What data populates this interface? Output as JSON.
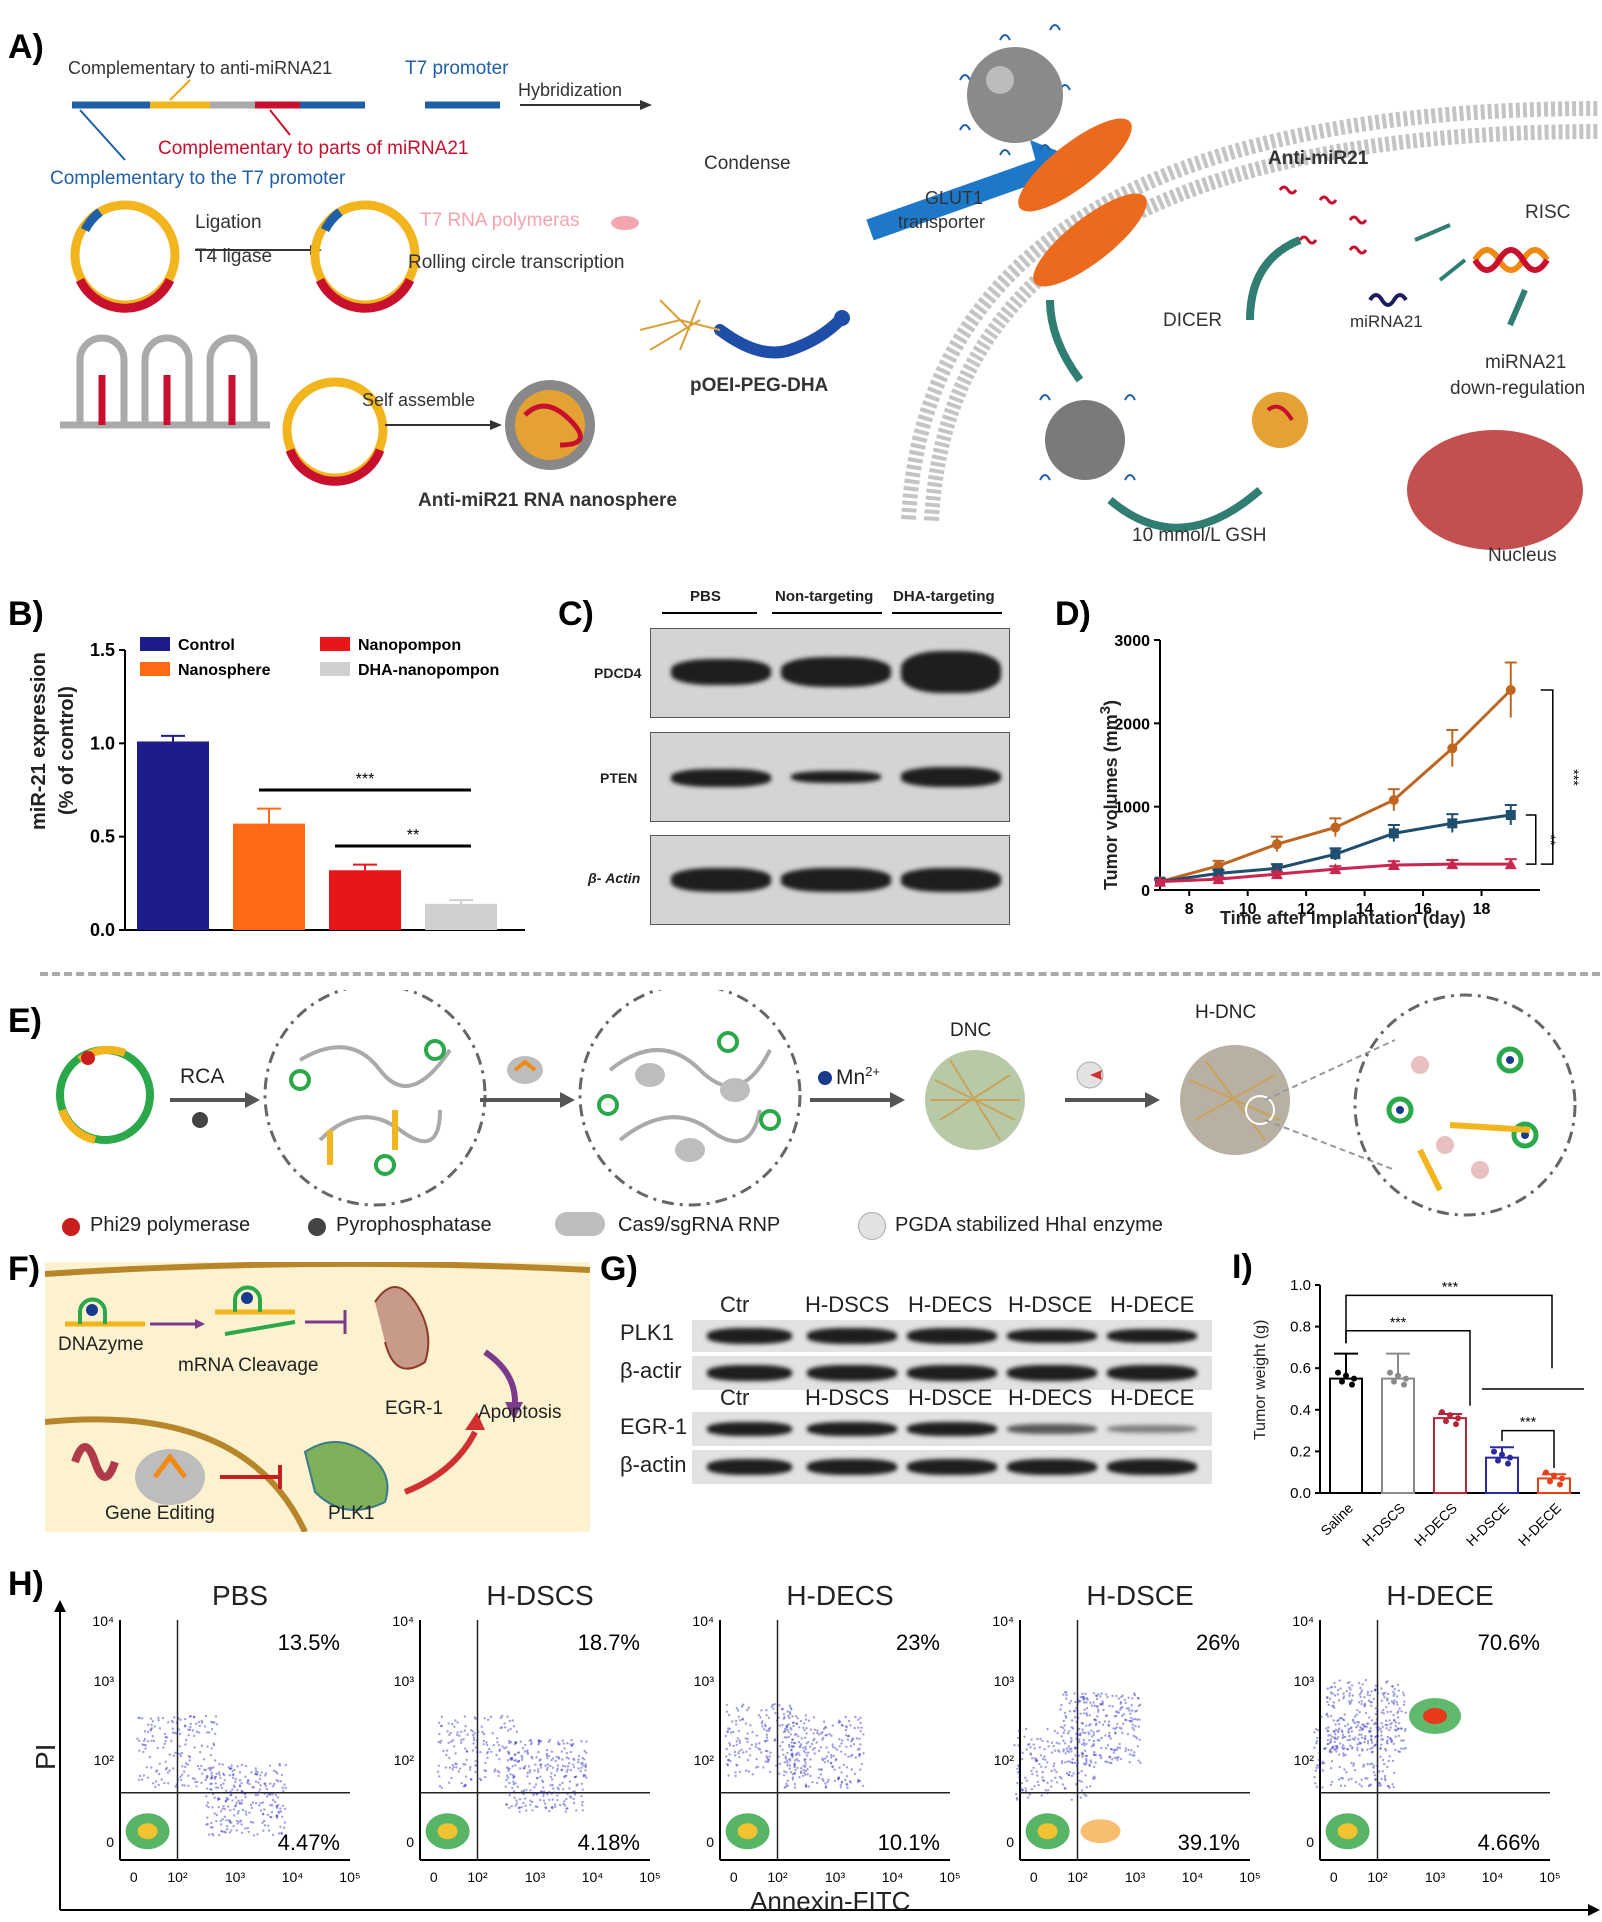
{
  "panels": {
    "A": "A)",
    "B": "B)",
    "C": "C)",
    "D": "D)",
    "E": "E)",
    "F": "F)",
    "G": "G)",
    "H": "H)",
    "I": "I)"
  },
  "panelA": {
    "complementary_anti": "Complementary to anti-miRNA21",
    "t7_promoter": "T7 promoter",
    "hybridization": "Hybridization",
    "complementary_parts": "Complementary to parts of miRNA21",
    "complementary_t7": "Complementary to the T7 promoter",
    "ligation": "Ligation",
    "t4_ligase": "T4 ligase",
    "t7_rna_pol": "T7 RNA polymeras",
    "rolling": "Rolling circle transcription",
    "self_assemble": "Self assemble",
    "nanosphere": "Anti-miR21 RNA nanosphere",
    "condense": "Condense",
    "polymer": "pOEI-PEG-DHA",
    "glut1": "GLUT1",
    "transporter": "transporter",
    "anti_mir21": "Anti-miR21",
    "dicer": "DICER",
    "mirna21": "miRNA21",
    "risc": "RISC",
    "downreg_1": "miRNA21",
    "downreg_2": "down-regulation",
    "gsh": "10 mmol/L GSH",
    "nucleus": "Nucleus"
  },
  "chart_B": {
    "type": "bar",
    "categories": [
      "Control",
      "Nanosphere",
      "Nanopompon",
      "DHA-nanopompon"
    ],
    "values": [
      1.01,
      0.57,
      0.32,
      0.14
    ],
    "errors": [
      0.03,
      0.08,
      0.03,
      0.02
    ],
    "colors": [
      "#1c1c8c",
      "#ff6a13",
      "#e8151b",
      "#cfcfcf"
    ],
    "ylabel_1": "miR-21 expression",
    "ylabel_2": "(% of control)",
    "ylim": [
      0,
      1.5
    ],
    "yticks": [
      "0.0",
      "0.5",
      "1.0",
      "1.5"
    ],
    "sig1": "***",
    "sig2": "**"
  },
  "blot_C": {
    "groups": [
      "PBS",
      "Non-targeting",
      "DHA-targeting"
    ],
    "rows": [
      "PDCD4",
      "PTEN",
      "β- Actin"
    ]
  },
  "chart_D": {
    "type": "line",
    "x": [
      7,
      9,
      11,
      13,
      15,
      17,
      19
    ],
    "series": [
      {
        "color": "#c0651f",
        "values": [
          100,
          290,
          550,
          750,
          1080,
          1700,
          2400
        ],
        "errors": [
          40,
          60,
          90,
          110,
          130,
          220,
          330
        ]
      },
      {
        "color": "#1f4e6e",
        "values": [
          100,
          200,
          260,
          430,
          680,
          800,
          900
        ],
        "errors": [
          30,
          40,
          50,
          70,
          100,
          110,
          120
        ]
      },
      {
        "color": "#c9274f",
        "values": [
          100,
          130,
          190,
          250,
          300,
          310,
          310
        ],
        "errors": [
          20,
          25,
          30,
          35,
          45,
          50,
          60
        ]
      }
    ],
    "xlabel": "Time after implantation (day)",
    "ylabel": "Tumor volumes (mm3)",
    "ylim": [
      0,
      3000
    ],
    "yticks": [
      "0",
      "1000",
      "2000",
      "3000"
    ],
    "xticks": [
      "8",
      "10",
      "12",
      "14",
      "16",
      "18"
    ],
    "sig1": "***",
    "sig2": "**"
  },
  "panelE": {
    "rca": "RCA",
    "mn": "Mn",
    "mn_sup": "2+",
    "dnc": "DNC",
    "hdnc": "H-DNC",
    "legend": [
      "Phi29 polymerase",
      "Pyrophosphatase",
      "Cas9/sgRNA RNP",
      "PGDA stabilized HhaI enzyme"
    ]
  },
  "panelF": {
    "dnazyme": "DNAzyme",
    "mrna": "mRNA Cleavage",
    "egr1": "EGR-1",
    "apoptosis": "Apoptosis",
    "gene_editing": "Gene Editing",
    "plk1": "PLK1"
  },
  "blot_G": {
    "top_labels": [
      "Ctr",
      "H-DSCS",
      "H-DECS",
      "H-DSCE",
      "H-DECE"
    ],
    "bottom_labels": [
      "Ctr",
      "H-DSCS",
      "H-DSCE",
      "H-DECS",
      "H-DECE"
    ],
    "rows": [
      "PLK1",
      "β-actir",
      "EGR-1",
      "β-actin"
    ]
  },
  "chart_I": {
    "type": "bar",
    "categories": [
      "Saline",
      "H-DSCS",
      "H-DECS",
      "H-DSCE",
      "H-DECE"
    ],
    "values": [
      0.55,
      0.55,
      0.36,
      0.17,
      0.07
    ],
    "errors": [
      0.12,
      0.12,
      0.02,
      0.05,
      0.02
    ],
    "colors": [
      "#000000",
      "#8a8a8a",
      "#b4263a",
      "#2a2aa0",
      "#e8401b"
    ],
    "ylabel": "Tumor weight (g)",
    "ylim": [
      0,
      1.0
    ],
    "yticks": [
      "0.0",
      "0.2",
      "0.4",
      "0.6",
      "0.8",
      "1.0"
    ],
    "sig": [
      "***",
      "***",
      "***"
    ]
  },
  "flow_H": {
    "ylabel": "PI",
    "xlabel": "Annexin-FITC",
    "ytick_labels": [
      "10⁴",
      "10³",
      "10²",
      "0"
    ],
    "xtick_labels": [
      "0",
      "10²",
      "10³",
      "10⁴",
      "10⁵"
    ],
    "plots": [
      {
        "title": "PBS",
        "upper_right": "13.5%",
        "lower_right": "4.47%"
      },
      {
        "title": "H-DSCS",
        "upper_right": "18.7%",
        "lower_right": "4.18%"
      },
      {
        "title": "H-DECS",
        "upper_right": "23%",
        "lower_right": "10.1%"
      },
      {
        "title": "H-DSCE",
        "upper_right": "26%",
        "lower_right": "39.1%"
      },
      {
        "title": "H-DECE",
        "upper_right": "70.6%",
        "lower_right": "4.66%"
      }
    ]
  }
}
